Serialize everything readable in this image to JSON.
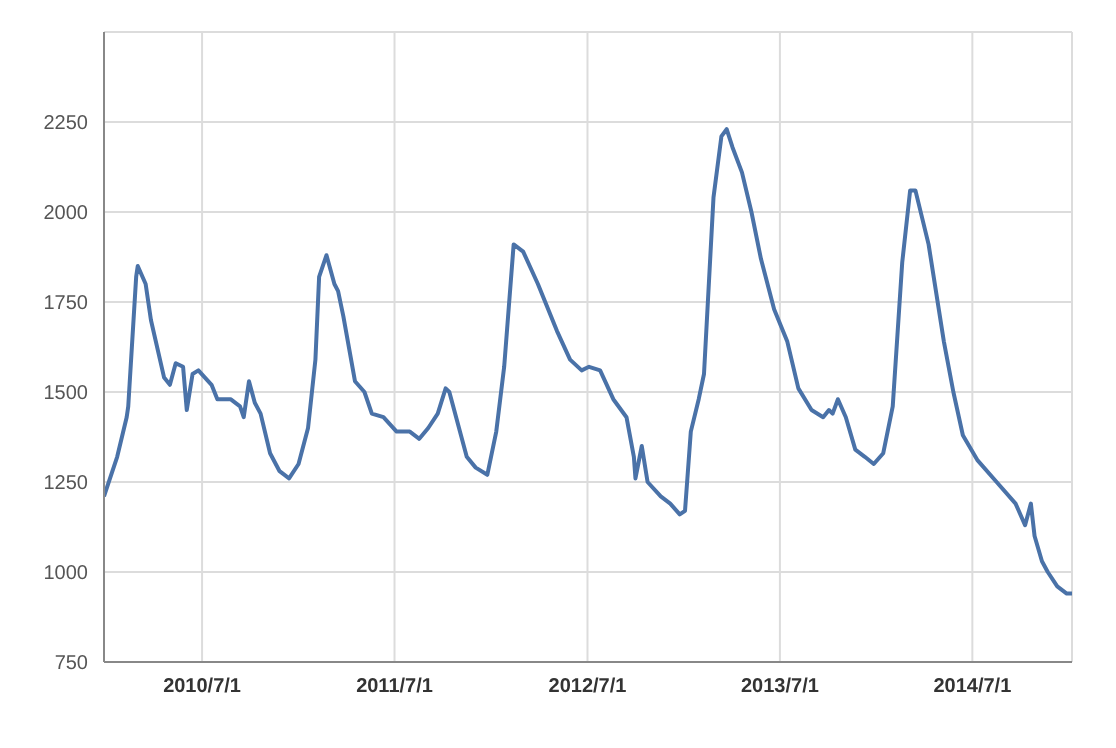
{
  "chart_data": {
    "type": "line",
    "color": "#4a72a8",
    "grid": true,
    "legend": false,
    "marker": "none",
    "line_style": "solid",
    "xlim": [
      "2009-12-27",
      "2015-01-06"
    ],
    "xticks": [
      {
        "value": "2010-07-01",
        "label": "2010/7/1"
      },
      {
        "value": "2011-07-01",
        "label": "2011/7/1"
      },
      {
        "value": "2012-07-01",
        "label": "2012/7/1"
      },
      {
        "value": "2013-07-01",
        "label": "2013/7/1"
      },
      {
        "value": "2014-07-01",
        "label": "2014/7/1"
      }
    ],
    "ylim": [
      750,
      2500
    ],
    "yticks": [
      750,
      1000,
      1250,
      1500,
      1750,
      2000,
      2250
    ],
    "x": [
      "2009-12-27",
      "2010-01-21",
      "2010-02-08",
      "2010-02-11",
      "2010-02-26",
      "2010-03-01",
      "2010-03-16",
      "2010-03-26",
      "2010-04-20",
      "2010-05-01",
      "2010-05-12",
      "2010-05-26",
      "2010-06-02",
      "2010-06-13",
      "2010-06-24",
      "2010-07-19",
      "2010-07-30",
      "2010-08-24",
      "2010-09-11",
      "2010-09-18",
      "2010-09-28",
      "2010-10-09",
      "2010-10-20",
      "2010-11-07",
      "2010-11-25",
      "2010-12-13",
      "2010-12-31",
      "2011-01-18",
      "2011-02-01",
      "2011-02-08",
      "2011-02-22",
      "2011-03-09",
      "2011-03-16",
      "2011-03-26",
      "2011-04-17",
      "2011-05-05",
      "2011-05-19",
      "2011-06-10",
      "2011-07-05",
      "2011-07-30",
      "2011-08-17",
      "2011-09-03",
      "2011-09-21",
      "2011-10-06",
      "2011-10-13",
      "2011-11-15",
      "2011-12-02",
      "2011-12-24",
      "2012-01-10",
      "2012-01-25",
      "2012-02-12",
      "2012-03-01",
      "2012-03-29",
      "2012-05-04",
      "2012-05-29",
      "2012-06-20",
      "2012-07-04",
      "2012-07-25",
      "2012-08-19",
      "2012-09-13",
      "2012-09-27",
      "2012-09-30",
      "2012-10-12",
      "2012-10-23",
      "2012-11-17",
      "2012-12-05",
      "2012-12-23",
      "2013-01-02",
      "2013-01-13",
      "2013-01-28",
      "2013-02-07",
      "2013-02-25",
      "2013-03-12",
      "2013-03-22",
      "2013-04-02",
      "2013-04-20",
      "2013-05-08",
      "2013-05-26",
      "2013-06-20",
      "2013-07-15",
      "2013-08-05",
      "2013-08-30",
      "2013-09-21",
      "2013-10-02",
      "2013-10-09",
      "2013-10-19",
      "2013-11-03",
      "2013-11-21",
      "2013-12-09",
      "2013-12-26",
      "2014-01-13",
      "2014-01-31",
      "2014-02-18",
      "2014-03-05",
      "2014-03-15",
      "2014-04-09",
      "2014-05-08",
      "2014-05-26",
      "2014-06-13",
      "2014-07-11",
      "2014-08-16",
      "2014-09-21",
      "2014-10-09",
      "2014-10-20",
      "2014-10-27",
      "2014-11-10",
      "2014-11-21",
      "2014-12-09",
      "2014-12-27",
      "2015-01-06"
    ],
    "values": [
      1210,
      1320,
      1430,
      1460,
      1820,
      1850,
      1800,
      1700,
      1540,
      1520,
      1580,
      1570,
      1450,
      1550,
      1560,
      1520,
      1480,
      1480,
      1460,
      1430,
      1530,
      1470,
      1440,
      1330,
      1280,
      1260,
      1300,
      1400,
      1590,
      1820,
      1880,
      1800,
      1780,
      1710,
      1530,
      1500,
      1440,
      1430,
      1390,
      1390,
      1370,
      1400,
      1440,
      1510,
      1500,
      1320,
      1290,
      1270,
      1390,
      1570,
      1910,
      1890,
      1800,
      1670,
      1590,
      1560,
      1570,
      1560,
      1480,
      1430,
      1320,
      1260,
      1350,
      1250,
      1210,
      1190,
      1160,
      1170,
      1390,
      1480,
      1550,
      2040,
      2210,
      2230,
      2180,
      2110,
      2000,
      1870,
      1730,
      1640,
      1510,
      1450,
      1430,
      1450,
      1440,
      1480,
      1430,
      1340,
      1320,
      1300,
      1330,
      1460,
      1860,
      2060,
      2060,
      1910,
      1640,
      1500,
      1380,
      1310,
      1250,
      1190,
      1130,
      1190,
      1100,
      1030,
      1000,
      960,
      940,
      940
    ]
  }
}
